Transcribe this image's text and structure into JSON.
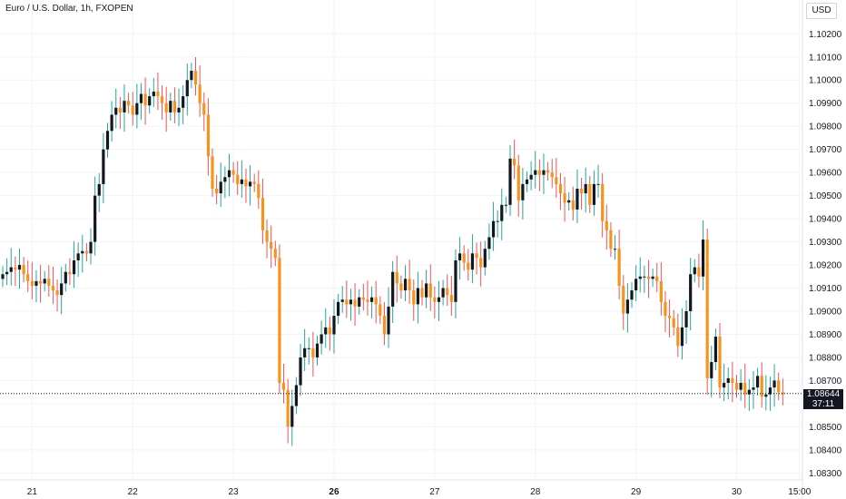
{
  "header": {
    "title": "Euro / U.S. Dollar, 1h, FXOPEN",
    "currency_button": "USD"
  },
  "last_price": {
    "value": "1.08644",
    "countdown": "37:11"
  },
  "colors": {
    "up": "#131722",
    "down": "#f7931a",
    "wick_up": "#26a69a",
    "wick_down": "#ef5350",
    "grid": "#f0f3fa",
    "axis_text": "#131722",
    "price_line": "#131722"
  },
  "chart_data": {
    "type": "candlestick",
    "title": "Euro / U.S. Dollar, 1h, FXOPEN",
    "yunit": "USD",
    "ylim": [
      1.0827,
      1.1026
    ],
    "y_ticks": [
      "1.10200",
      "1.10100",
      "1.10000",
      "1.09900",
      "1.09800",
      "1.09700",
      "1.09600",
      "1.09500",
      "1.09400",
      "1.09300",
      "1.09200",
      "1.09100",
      "1.09000",
      "1.08900",
      "1.08800",
      "1.08700",
      "1.08600",
      "1.08500",
      "1.08400",
      "1.08300"
    ],
    "x_ticks": [
      {
        "label": "21",
        "bold": false,
        "index": 7
      },
      {
        "label": "22",
        "bold": false,
        "index": 31
      },
      {
        "label": "23",
        "bold": false,
        "index": 55
      },
      {
        "label": "26",
        "bold": true,
        "index": 79
      },
      {
        "label": "27",
        "bold": false,
        "index": 103
      },
      {
        "label": "28",
        "bold": false,
        "index": 127
      },
      {
        "label": "29",
        "bold": false,
        "index": 151
      },
      {
        "label": "30",
        "bold": false,
        "index": 175
      },
      {
        "label": "15:00",
        "bold": false,
        "index": 190
      }
    ],
    "grid": true,
    "close_levels": [
      1.0916,
      1.0917,
      1.0919,
      1.0918,
      1.092,
      1.0916,
      1.0913,
      1.0911,
      1.0913,
      1.0912,
      1.0914,
      1.0911,
      1.0909,
      1.0907,
      1.0912,
      1.0917,
      1.0916,
      1.0922,
      1.0925,
      1.0926,
      1.0925,
      1.093,
      1.095,
      1.0955,
      1.097,
      1.0978,
      1.0985,
      1.0988,
      1.0986,
      1.0991,
      1.0989,
      1.0985,
      1.099,
      1.0994,
      1.0989,
      1.0993,
      1.0995,
      1.0993,
      1.099,
      1.0986,
      1.0991,
      1.0986,
      1.0988,
      1.0993,
      1.1,
      1.1004,
      1.0998,
      1.099,
      1.0985,
      1.0967,
      1.0953,
      1.0951,
      1.0956,
      1.0958,
      1.0961,
      1.0959,
      1.0955,
      1.0957,
      1.0954,
      1.0956,
      1.0955,
      1.0949,
      1.0935,
      1.093,
      1.0927,
      1.0923,
      1.0869,
      1.0866,
      1.085,
      1.0859,
      1.0868,
      1.088,
      1.0884,
      1.0884,
      1.088,
      1.0886,
      1.089,
      1.0893,
      1.089,
      1.0898,
      1.0904,
      1.0905,
      1.0903,
      1.0905,
      1.0902,
      1.0906,
      1.0905,
      1.0904,
      1.0906,
      1.0903,
      1.0898,
      1.089,
      1.0902,
      1.0917,
      1.0912,
      1.0909,
      1.0914,
      1.0909,
      1.0903,
      1.091,
      1.0906,
      1.0912,
      1.0906,
      1.0904,
      1.0906,
      1.091,
      1.0907,
      1.0904,
      1.0922,
      1.0925,
      1.0921,
      1.0918,
      1.0925,
      1.0923,
      1.0919,
      1.0927,
      1.0932,
      1.0939,
      1.0939,
      1.0946,
      1.0946,
      1.0966,
      1.0963,
      1.0948,
      1.0955,
      1.0957,
      1.0959,
      1.0961,
      1.0959,
      1.0961,
      1.096,
      1.0958,
      1.0955,
      1.0951,
      1.0947,
      1.0948,
      1.0944,
      1.0953,
      1.0951,
      1.0955,
      1.0946,
      1.0955,
      1.0955,
      1.0939,
      1.0935,
      1.0927,
      1.0927,
      1.0911,
      1.0899,
      1.0905,
      1.0909,
      1.0914,
      1.0915,
      1.0915,
      1.0914,
      1.0915,
      1.0913,
      1.0904,
      1.0898,
      1.0897,
      1.0893,
      1.0885,
      1.0893,
      1.09,
      1.0916,
      1.0919,
      1.0915,
      1.0931,
      1.0871,
      1.0878,
      1.0889,
      1.0867,
      1.0869,
      1.0871,
      1.0869,
      1.0866,
      1.0869,
      1.0864,
      1.0866,
      1.0867,
      1.0872,
      1.0863,
      1.0864,
      1.0867,
      1.087,
      1.0865,
      1.0864
    ]
  }
}
